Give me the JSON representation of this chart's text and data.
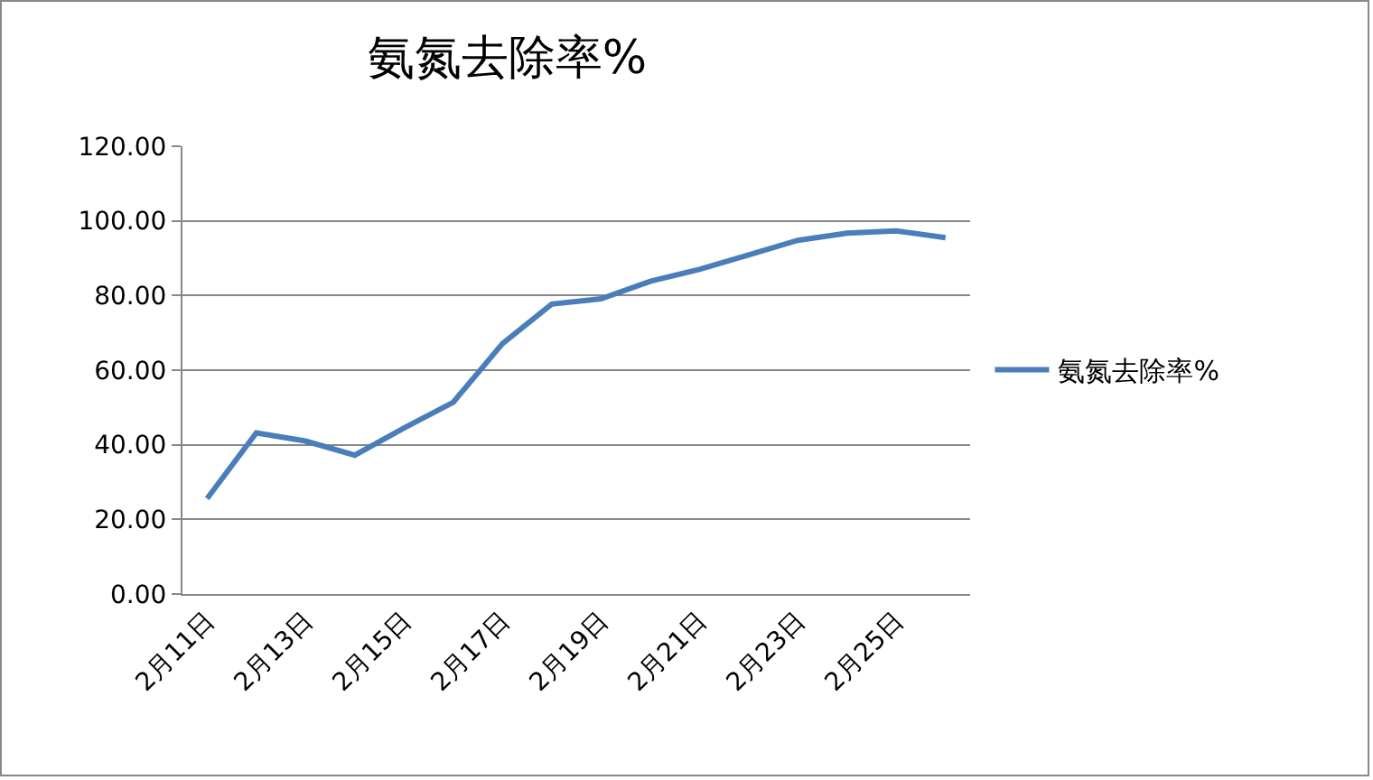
{
  "chart_data": {
    "type": "line",
    "title": "氨氮去除率%",
    "categories": [
      "2月11日",
      null,
      "2月13日",
      null,
      "2月15日",
      null,
      "2月17日",
      null,
      "2月19日",
      null,
      "2月21日",
      null,
      "2月23日",
      null,
      "2月25日",
      null
    ],
    "series": [
      {
        "name": "氨氮去除率%",
        "color": "#4a7ebb",
        "values": [
          25.6,
          43.2,
          41.0,
          37.2,
          44.5,
          51.4,
          67.1,
          77.7,
          79.1,
          83.8,
          87.0,
          90.9,
          94.8,
          96.7,
          97.3,
          95.5
        ]
      }
    ],
    "ylim": [
      0,
      120
    ],
    "yticks": [
      {
        "value": 0,
        "label": "0.00"
      },
      {
        "value": 20,
        "label": "20.00"
      },
      {
        "value": 40,
        "label": "40.00"
      },
      {
        "value": 60,
        "label": "60.00"
      },
      {
        "value": 80,
        "label": "80.00"
      },
      {
        "value": 100,
        "label": "100.00"
      },
      {
        "value": 120,
        "label": "120.00"
      }
    ],
    "grid": "y",
    "legend": "right",
    "marker": "none",
    "line_style": "solid"
  }
}
